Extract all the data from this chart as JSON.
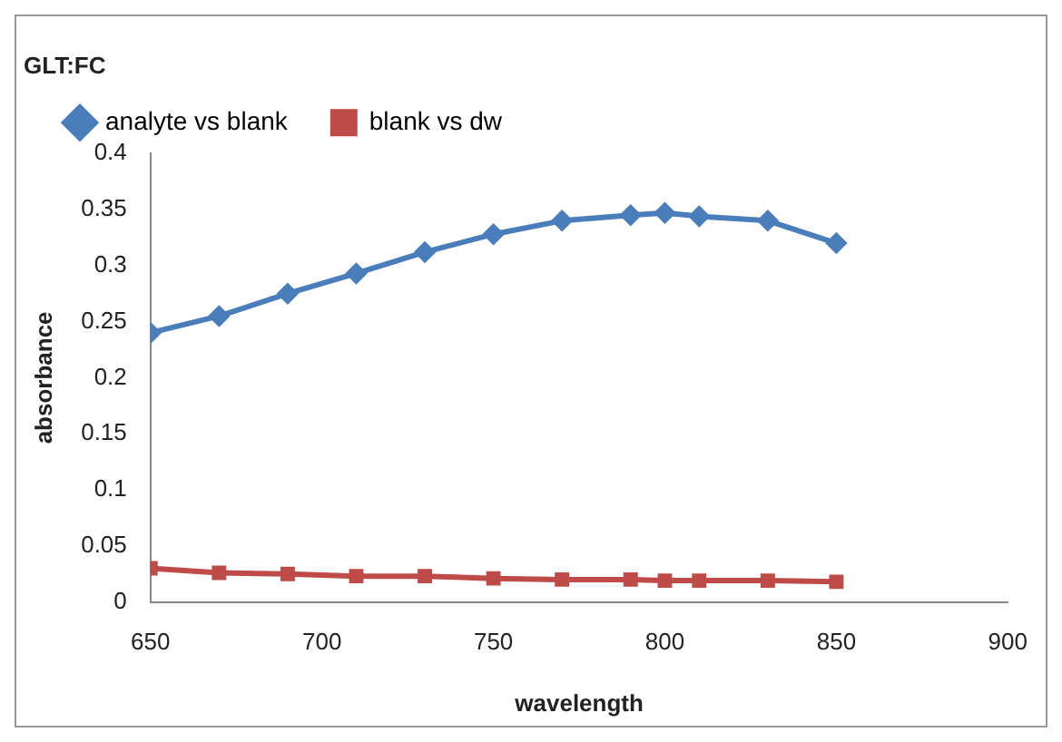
{
  "chart_data": {
    "type": "line",
    "title": "GLT:FC",
    "xlabel": "wavelength",
    "ylabel": "absorbance",
    "x": [
      650,
      670,
      690,
      710,
      730,
      750,
      770,
      790,
      800,
      810,
      830,
      850
    ],
    "series": [
      {
        "name": "analyte vs blank",
        "color": "#4a7ebb",
        "marker": "diamond",
        "values": [
          0.24,
          0.255,
          0.275,
          0.293,
          0.312,
          0.328,
          0.34,
          0.345,
          0.347,
          0.344,
          0.34,
          0.32
        ]
      },
      {
        "name": "blank vs dw",
        "color": "#be4b48",
        "marker": "square",
        "values": [
          0.03,
          0.026,
          0.025,
          0.023,
          0.023,
          0.021,
          0.02,
          0.02,
          0.019,
          0.019,
          0.019,
          0.018
        ]
      }
    ],
    "xlim": [
      650,
      900
    ],
    "xticks": [
      650,
      700,
      750,
      800,
      850,
      900
    ],
    "ylim": [
      0,
      0.4
    ],
    "yticks": [
      0,
      0.05,
      0.1,
      0.15,
      0.2,
      0.25,
      0.3,
      0.35,
      0.4
    ],
    "grid": false,
    "legend": "top",
    "line_style": "solid"
  }
}
